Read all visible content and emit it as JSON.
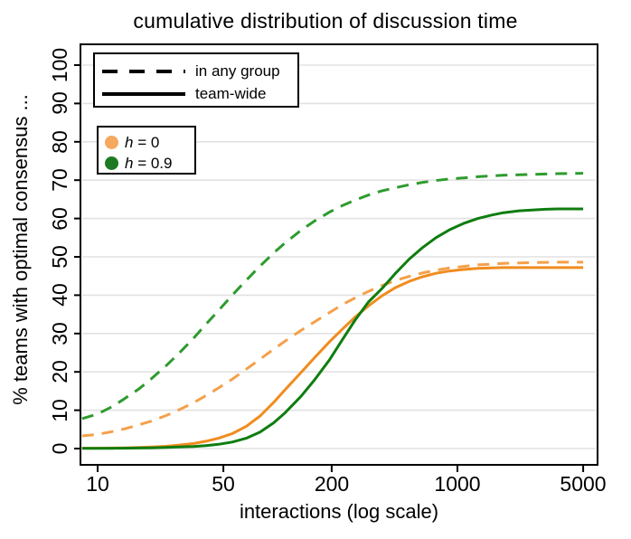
{
  "title": "cumulative distribution of discussion time",
  "axes": {
    "x_label": "interactions (log scale)",
    "y_label": "% teams with optimal consensus ...",
    "x_tick_values": [
      10,
      50,
      200,
      1000,
      5000
    ],
    "y_tick_values": [
      0,
      10,
      20,
      30,
      40,
      50,
      60,
      70,
      80,
      90,
      100
    ]
  },
  "colors": {
    "gridline": "#e2e2e2",
    "axis": "#000000",
    "orange_dashed": "#f5a04a",
    "orange_solid": "#f08c1e",
    "green_dashed": "#2e9b2e",
    "green_solid": "#0f7d0f",
    "legend_orange_dot": "#f6a85f",
    "legend_green_dot": "#1c7a21"
  },
  "legend_lines": {
    "items": [
      {
        "style": "dashed",
        "label": "in any group"
      },
      {
        "style": "solid",
        "label": "team-wide"
      }
    ]
  },
  "legend_colors": {
    "items": [
      {
        "var": "h",
        "rest": " = 0",
        "color": "#f6a85f"
      },
      {
        "var": "h",
        "rest": " = 0.9",
        "color": "#1c7a21"
      }
    ]
  },
  "chart_data": {
    "type": "line",
    "title": "cumulative distribution of discussion time",
    "xlabel": "interactions (log scale)",
    "ylabel": "% teams with optimal consensus ...",
    "xscale": "log",
    "xlim": [
      8,
      6000
    ],
    "ylim": [
      0,
      100
    ],
    "grid": "horizontal gridlines every 10, light gray",
    "legend_position": "top-left, two boxes (line style; color)",
    "x": [
      8.2,
      10,
      12,
      14,
      17,
      20,
      24,
      28,
      34,
      40,
      47,
      56,
      67,
      80,
      95,
      110,
      135,
      160,
      195,
      230,
      270,
      320,
      380,
      450,
      540,
      640,
      760,
      900,
      1080,
      1300,
      1550,
      1800,
      2200,
      2600,
      3100,
      3600,
      4300,
      5000
    ],
    "series": [
      {
        "id": "any-group-h0",
        "name": "in any group, h = 0",
        "color": "#f5a04a",
        "dashed": true,
        "values": [
          3.3,
          3.7,
          4.4,
          5.1,
          6.2,
          7.2,
          8.6,
          10,
          11.9,
          13.8,
          15.8,
          18.1,
          20.7,
          23.3,
          25.9,
          28,
          30.8,
          33,
          35.5,
          37.6,
          39.3,
          41,
          42.5,
          43.8,
          44.9,
          45.8,
          46.5,
          47.1,
          47.5,
          47.9,
          48.1,
          48.3,
          48.4,
          48.5,
          48.55,
          48.6,
          48.6,
          48.6
        ]
      },
      {
        "id": "any-group-h09",
        "name": "in any group, h = 0.9",
        "color": "#2e9b2e",
        "dashed": true,
        "values": [
          7.8,
          9,
          10.9,
          12.9,
          15.6,
          18.3,
          21.6,
          24.6,
          28.7,
          32.4,
          36,
          40,
          43.9,
          47.6,
          51,
          53.6,
          56.9,
          59.3,
          61.7,
          63.4,
          64.8,
          66.1,
          67.2,
          68,
          68.8,
          69.4,
          69.9,
          70.3,
          70.6,
          70.9,
          71.1,
          71.3,
          71.4,
          71.5,
          71.6,
          71.7,
          71.75,
          71.8
        ]
      },
      {
        "id": "team-wide-h0",
        "name": "team-wide, h = 0",
        "color": "#f08c1e",
        "dashed": false,
        "values": [
          0.1,
          0.1,
          0.15,
          0.2,
          0.3,
          0.4,
          0.6,
          0.9,
          1.3,
          1.9,
          2.7,
          3.9,
          5.8,
          8.5,
          12,
          15.3,
          19.8,
          23.6,
          27.9,
          31.2,
          34.3,
          37.2,
          39.8,
          41.9,
          43.6,
          44.8,
          45.7,
          46.3,
          46.7,
          47,
          47.1,
          47.2,
          47.2,
          47.2,
          47.2,
          47.2,
          47.2,
          47.2
        ]
      },
      {
        "id": "team-wide-h09",
        "name": "team-wide, h = 0.9",
        "color": "#0f7d0f",
        "dashed": false,
        "values": [
          0.05,
          0.05,
          0.08,
          0.1,
          0.15,
          0.2,
          0.3,
          0.4,
          0.55,
          0.75,
          1.1,
          1.7,
          2.7,
          4.3,
          6.7,
          9.3,
          13.6,
          17.8,
          23.2,
          28.5,
          33.5,
          38.2,
          41.7,
          45.6,
          49.4,
          52.4,
          55,
          57,
          58.7,
          60,
          60.9,
          61.5,
          62,
          62.2,
          62.4,
          62.5,
          62.5,
          62.5
        ]
      }
    ]
  }
}
